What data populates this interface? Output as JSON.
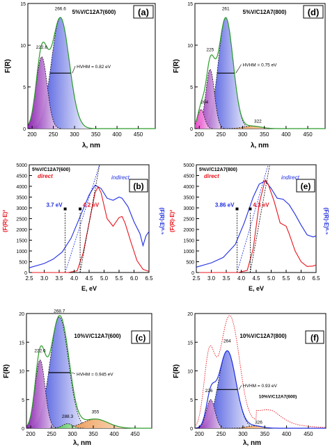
{
  "chart_data": [
    {
      "id": "a",
      "type": "area",
      "panel_label": "(a)",
      "title": "5%V/C12A7(600)",
      "xlabel": "λ, nm",
      "ylabel": "F(R)",
      "xlim": [
        190,
        490
      ],
      "ylim": [
        0,
        15
      ],
      "xticks": [
        "200",
        "250",
        "300",
        "350",
        "400",
        "450"
      ],
      "yticks": [
        "0",
        "5",
        "10",
        "15"
      ],
      "peak_labels": [
        {
          "text": "266.6",
          "x": 266.6,
          "y": 14.2
        },
        {
          "text": "222.6",
          "x": 222.6,
          "y": 9.6
        }
      ],
      "annotation": {
        "text": "HVHM = 0.82 eV",
        "x": 305,
        "y": 7.5
      },
      "components": [
        {
          "center": 222.6,
          "height": 8.6,
          "width": 13
        },
        {
          "center": 266.6,
          "height": 13.3,
          "width": 21
        }
      ],
      "envelope_decay": 0.02
    },
    {
      "id": "d",
      "type": "area",
      "panel_label": "(d)",
      "title": "5%V/C12A7(800)",
      "xlabel": "λ, nm",
      "ylabel": "F(R)",
      "xlim": [
        190,
        490
      ],
      "ylim": [
        0,
        15
      ],
      "xticks": [
        "200",
        "250",
        "300",
        "350",
        "400",
        "450"
      ],
      "yticks": [
        "0",
        "5",
        "10",
        "15"
      ],
      "peak_labels": [
        {
          "text": "261",
          "x": 261,
          "y": 14.2
        },
        {
          "text": "225",
          "x": 225,
          "y": 9.3
        },
        {
          "text": "204",
          "x": 212,
          "y": 3.0
        },
        {
          "text": "322",
          "x": 335,
          "y": 0.7
        }
      ],
      "annotation": {
        "text": "HVHM = 0.75 eV",
        "x": 300,
        "y": 7.7
      },
      "components": [
        {
          "center": 204,
          "height": 2.3,
          "width": 8
        },
        {
          "center": 225,
          "height": 7.1,
          "width": 10
        },
        {
          "center": 261,
          "height": 13.3,
          "width": 17
        },
        {
          "center": 322,
          "height": 0.3,
          "width": 20
        }
      ],
      "envelope_decay": 0.02
    },
    {
      "id": "b",
      "type": "line",
      "panel_label": "(b)",
      "title": "5%V/C12A7(600)",
      "xlabel": "E, eV",
      "ylabel": "(F(R)·E)²",
      "y2label": "(F(R)·E)⁰·⁵",
      "xlim": [
        2.5,
        6.5
      ],
      "ylim": [
        0,
        5000
      ],
      "xticks": [
        "2.5",
        "3.0",
        "3.5",
        "4.0",
        "4.5",
        "5.0",
        "5.5",
        "6.0",
        "6.5"
      ],
      "yticks": [
        "0",
        "500",
        "1000",
        "1500",
        "2000",
        "2500",
        "3000",
        "3500",
        "4000",
        "4500",
        "5000"
      ],
      "legend": [
        {
          "text": "direct",
          "color": "#e8141c"
        },
        {
          "text": "indirect",
          "color": "#1f2ee0"
        }
      ],
      "edges": [
        {
          "text": "3.7 eV",
          "x": 3.7,
          "color": "#1f2ee0"
        },
        {
          "text": "4.2 eV",
          "x": 4.2,
          "color": "#e8141c"
        }
      ],
      "direct_curve": [
        [
          2.5,
          0
        ],
        [
          3.8,
          0
        ],
        [
          4.1,
          80
        ],
        [
          4.3,
          900
        ],
        [
          4.5,
          2300
        ],
        [
          4.7,
          3700
        ],
        [
          4.8,
          3980
        ],
        [
          4.9,
          3700
        ],
        [
          5.1,
          2500
        ],
        [
          5.3,
          2150
        ],
        [
          5.5,
          2550
        ],
        [
          5.6,
          2600
        ],
        [
          5.7,
          2300
        ],
        [
          5.9,
          1400
        ],
        [
          6.1,
          550
        ],
        [
          6.3,
          150
        ],
        [
          6.5,
          50
        ]
      ],
      "indirect_curve": [
        [
          2.5,
          220
        ],
        [
          3.0,
          420
        ],
        [
          3.3,
          620
        ],
        [
          3.6,
          950
        ],
        [
          3.9,
          1600
        ],
        [
          4.2,
          2600
        ],
        [
          4.5,
          3600
        ],
        [
          4.7,
          4050
        ],
        [
          4.9,
          3900
        ],
        [
          5.1,
          3450
        ],
        [
          5.3,
          3350
        ],
        [
          5.5,
          3500
        ],
        [
          5.6,
          3450
        ],
        [
          5.8,
          3050
        ],
        [
          6.0,
          2350
        ],
        [
          6.2,
          1800
        ],
        [
          6.3,
          1250
        ],
        [
          6.4,
          1700
        ],
        [
          6.5,
          1900
        ]
      ],
      "direct_fit": [
        [
          4.2,
          0
        ],
        [
          4.85,
          5000
        ]
      ],
      "indirect_fit": [
        [
          3.7,
          0
        ],
        [
          4.85,
          5000
        ]
      ]
    },
    {
      "id": "e",
      "type": "line",
      "panel_label": "(e)",
      "title": "5%V/C12A7(800)",
      "xlabel": "E, eV",
      "ylabel": "(F(R)·E)²",
      "y2label": "(F(R)·E)⁰·⁵",
      "xlim": [
        2.5,
        6.5
      ],
      "ylim": [
        0,
        5000
      ],
      "xticks": [
        "2.5",
        "3.0",
        "3.5",
        "4.0",
        "4.5",
        "5.0",
        "5.5",
        "6.0",
        "6.5"
      ],
      "yticks": [
        "0",
        "500",
        "1000",
        "1500",
        "2000",
        "2500",
        "3000",
        "3500",
        "4000",
        "4500",
        "5000"
      ],
      "legend": [
        {
          "text": "direct",
          "color": "#e8141c"
        },
        {
          "text": "indirect",
          "color": "#1f2ee0"
        }
      ],
      "edges": [
        {
          "text": "3.86 eV",
          "x": 3.86,
          "color": "#1f2ee0"
        },
        {
          "text": "4.3 eV",
          "x": 4.3,
          "color": "#e8141c"
        }
      ],
      "direct_curve": [
        [
          2.5,
          0
        ],
        [
          3.9,
          0
        ],
        [
          4.2,
          100
        ],
        [
          4.4,
          1100
        ],
        [
          4.6,
          3200
        ],
        [
          4.8,
          4300
        ],
        [
          4.9,
          4100
        ],
        [
          5.1,
          3300
        ],
        [
          5.3,
          2300
        ],
        [
          5.5,
          2150
        ],
        [
          5.6,
          1800
        ],
        [
          5.8,
          1000
        ],
        [
          6.0,
          500
        ],
        [
          6.2,
          280
        ],
        [
          6.4,
          300
        ],
        [
          6.5,
          350
        ]
      ],
      "indirect_curve": [
        [
          2.5,
          250
        ],
        [
          3.0,
          450
        ],
        [
          3.4,
          700
        ],
        [
          3.8,
          1300
        ],
        [
          4.1,
          2300
        ],
        [
          4.4,
          3500
        ],
        [
          4.6,
          4100
        ],
        [
          4.8,
          4250
        ],
        [
          5.0,
          3900
        ],
        [
          5.2,
          3450
        ],
        [
          5.4,
          3400
        ],
        [
          5.6,
          3150
        ],
        [
          5.8,
          2700
        ],
        [
          6.0,
          2200
        ],
        [
          6.2,
          1750
        ],
        [
          6.4,
          1650
        ],
        [
          6.5,
          1700
        ]
      ],
      "direct_fit": [
        [
          4.3,
          0
        ],
        [
          4.95,
          5000
        ]
      ],
      "indirect_fit": [
        [
          3.86,
          0
        ],
        [
          4.9,
          5000
        ]
      ]
    },
    {
      "id": "c",
      "type": "area",
      "panel_label": "(c)",
      "title": "10%V/C12A7(600)",
      "xlabel": "λ, nm",
      "ylabel": "F(R)",
      "xlim": [
        190,
        490
      ],
      "ylim": [
        0,
        20
      ],
      "xticks": [
        "200",
        "250",
        "300",
        "350",
        "400",
        "450"
      ],
      "yticks": [
        "0",
        "5",
        "10",
        "15",
        "20"
      ],
      "peak_labels": [
        {
          "text": "268.7",
          "x": 268.7,
          "y": 20.2
        },
        {
          "text": "222.6",
          "x": 222.6,
          "y": 13.3
        },
        {
          "text": "288.3",
          "x": 288.3,
          "y": 1.8
        },
        {
          "text": "355",
          "x": 355,
          "y": 2.6
        }
      ],
      "annotation": {
        "text": "HVHM = 0.945 eV",
        "x": 310,
        "y": 9.5
      },
      "components": [
        {
          "center": 222.6,
          "height": 11.9,
          "width": 12
        },
        {
          "center": 268.7,
          "height": 19.4,
          "width": 22
        },
        {
          "center": 288.3,
          "height": 0.8,
          "width": 12
        },
        {
          "center": 355,
          "height": 1.6,
          "width": 30
        }
      ],
      "envelope_decay": 0.02
    },
    {
      "id": "f",
      "type": "area",
      "panel_label": "(f)",
      "title": "10%V/C12A7(800)",
      "xlabel": "λ, nm",
      "ylabel": "F(R)",
      "xlim": [
        190,
        490
      ],
      "ylim": [
        0,
        20
      ],
      "xticks": [
        "200",
        "250",
        "300",
        "350",
        "400",
        "450"
      ],
      "yticks": [
        "0",
        "5",
        "10",
        "15",
        "20"
      ],
      "peak_labels": [
        {
          "text": "264",
          "x": 264,
          "y": 15.0
        },
        {
          "text": "226",
          "x": 222,
          "y": 6.3
        },
        {
          "text": "326",
          "x": 336,
          "y": 0.8
        }
      ],
      "annotation": {
        "text": "HVHM = 0.93 eV",
        "x": 300,
        "y": 7.5
      },
      "dotted_label": {
        "text": "10%V/C12A7(600)",
        "x": 380,
        "y": 5.3
      },
      "components": [
        {
          "center": 226,
          "height": 5.0,
          "width": 10
        },
        {
          "center": 264,
          "height": 13.5,
          "width": 20
        },
        {
          "center": 326,
          "height": 0.4,
          "width": 18
        }
      ],
      "envelope_decay": 0.02,
      "dotted_components": [
        {
          "center": 222.6,
          "height": 11.9,
          "width": 12
        },
        {
          "center": 268.7,
          "height": 19.4,
          "width": 22
        },
        {
          "center": 288.3,
          "height": 0.8,
          "width": 12
        },
        {
          "center": 355,
          "height": 1.6,
          "width": 30
        }
      ]
    }
  ]
}
